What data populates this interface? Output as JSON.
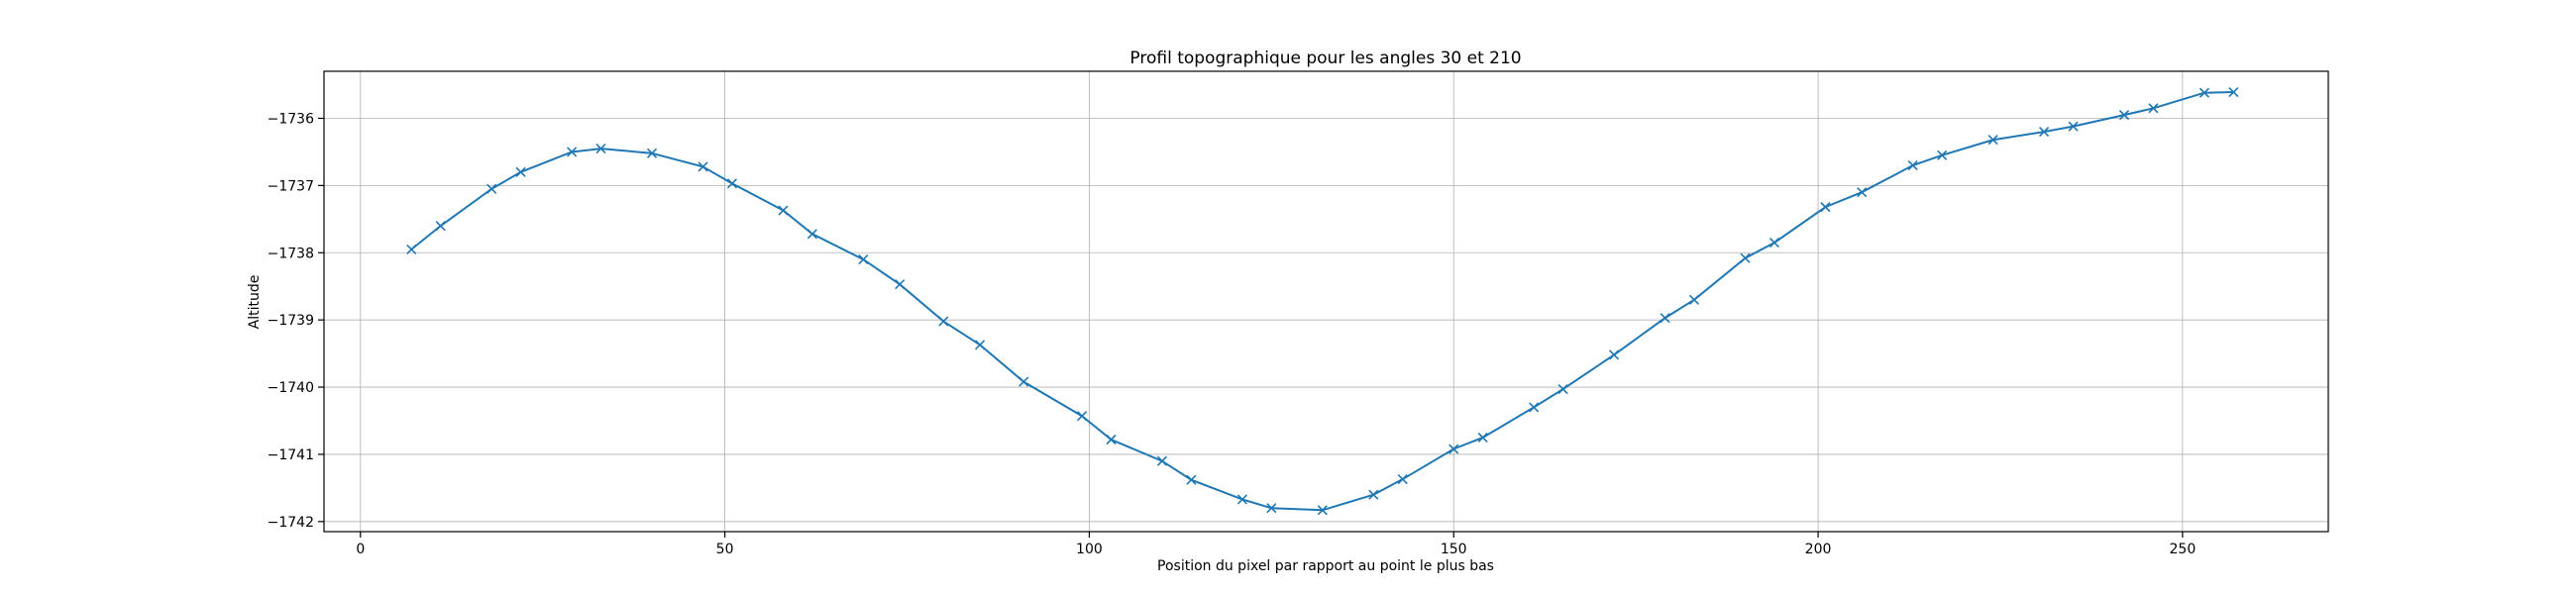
{
  "chart_data": {
    "type": "line",
    "title": "Profil topographique pour les angles 30 et 210",
    "xlabel": "Position du pixel par rapport au point le plus bas",
    "ylabel": "Altitude",
    "xlim": [
      -5,
      270
    ],
    "ylim": [
      -1742.15,
      -1735.3
    ],
    "x_ticks": [
      0,
      50,
      100,
      150,
      200,
      250
    ],
    "y_ticks": [
      -1736,
      -1737,
      -1738,
      -1739,
      -1740,
      -1741,
      -1742
    ],
    "x_tick_labels": [
      "0",
      "50",
      "100",
      "150",
      "200",
      "250"
    ],
    "y_tick_labels": [
      "−1736",
      "−1737",
      "−1738",
      "−1739",
      "−1740",
      "−1741",
      "−1742"
    ],
    "grid": true,
    "marker": "x",
    "series": [
      {
        "color": "#1f77b4",
        "x": [
          7,
          11,
          18,
          22,
          29,
          33,
          40,
          47,
          51,
          58,
          62,
          69,
          74,
          80,
          85,
          91,
          99,
          103,
          110,
          114,
          121,
          125,
          132,
          139,
          143,
          150,
          154,
          161,
          165,
          172,
          179,
          183,
          190,
          194,
          201,
          206,
          213,
          217,
          224,
          231,
          235,
          242,
          246,
          253,
          257
        ],
        "y": [
          -1737.95,
          -1737.6,
          -1737.05,
          -1736.8,
          -1736.5,
          -1736.45,
          -1736.52,
          -1736.72,
          -1736.97,
          -1737.37,
          -1737.72,
          -1738.1,
          -1738.47,
          -1739.02,
          -1739.37,
          -1739.92,
          -1740.43,
          -1740.78,
          -1741.1,
          -1741.38,
          -1741.67,
          -1741.8,
          -1741.83,
          -1741.6,
          -1741.37,
          -1740.92,
          -1740.75,
          -1740.3,
          -1740.03,
          -1739.52,
          -1738.97,
          -1738.7,
          -1738.08,
          -1737.85,
          -1737.32,
          -1737.1,
          -1736.7,
          -1736.55,
          -1736.32,
          -1736.2,
          -1736.12,
          -1735.95,
          -1735.85,
          -1735.62,
          -1735.61
        ]
      }
    ]
  }
}
